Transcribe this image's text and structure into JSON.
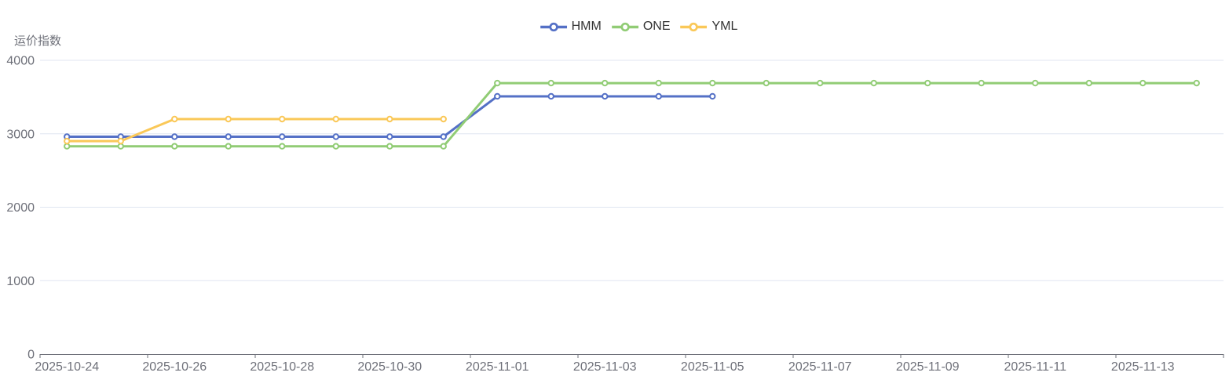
{
  "chart_data": {
    "type": "line",
    "title": "",
    "ylabel": "运价指数",
    "xlabel": "",
    "ylim": [
      0,
      4000
    ],
    "y_ticks": [
      0,
      1000,
      2000,
      3000,
      4000
    ],
    "x": [
      "2025-10-24",
      "2025-10-25",
      "2025-10-26",
      "2025-10-27",
      "2025-10-28",
      "2025-10-29",
      "2025-10-30",
      "2025-10-31",
      "2025-11-01",
      "2025-11-02",
      "2025-11-03",
      "2025-11-04",
      "2025-11-05",
      "2025-11-06",
      "2025-11-07",
      "2025-11-08",
      "2025-11-09",
      "2025-11-10",
      "2025-11-11",
      "2025-11-12",
      "2025-11-13",
      "2025-11-14"
    ],
    "x_label_interval": 2,
    "grid": true,
    "legend_position": "top-center",
    "marker": "hollow-circle",
    "series": [
      {
        "name": "HMM",
        "color": "#5470c6",
        "values": [
          2960,
          2960,
          2960,
          2960,
          2960,
          2960,
          2960,
          2960,
          3510,
          3510,
          3510,
          3510,
          3510,
          null,
          null,
          null,
          null,
          null,
          null,
          null,
          null,
          null
        ]
      },
      {
        "name": "ONE",
        "color": "#91cc75",
        "values": [
          2830,
          2830,
          2830,
          2830,
          2830,
          2830,
          2830,
          2830,
          3690,
          3690,
          3690,
          3690,
          3690,
          3690,
          3690,
          3690,
          3690,
          3690,
          3690,
          3690,
          3690,
          3690
        ]
      },
      {
        "name": "YML",
        "color": "#fac858",
        "values": [
          2900,
          2900,
          3200,
          3200,
          3200,
          3200,
          3200,
          3200,
          null,
          null,
          null,
          null,
          null,
          null,
          null,
          null,
          null,
          null,
          null,
          null,
          null,
          null
        ]
      }
    ],
    "colors": {
      "grid_line": "#e0e6f1",
      "axis_line": "#6e7079",
      "axis_label": "#6e7079",
      "legend_text": "#333333",
      "background": "#ffffff"
    }
  }
}
